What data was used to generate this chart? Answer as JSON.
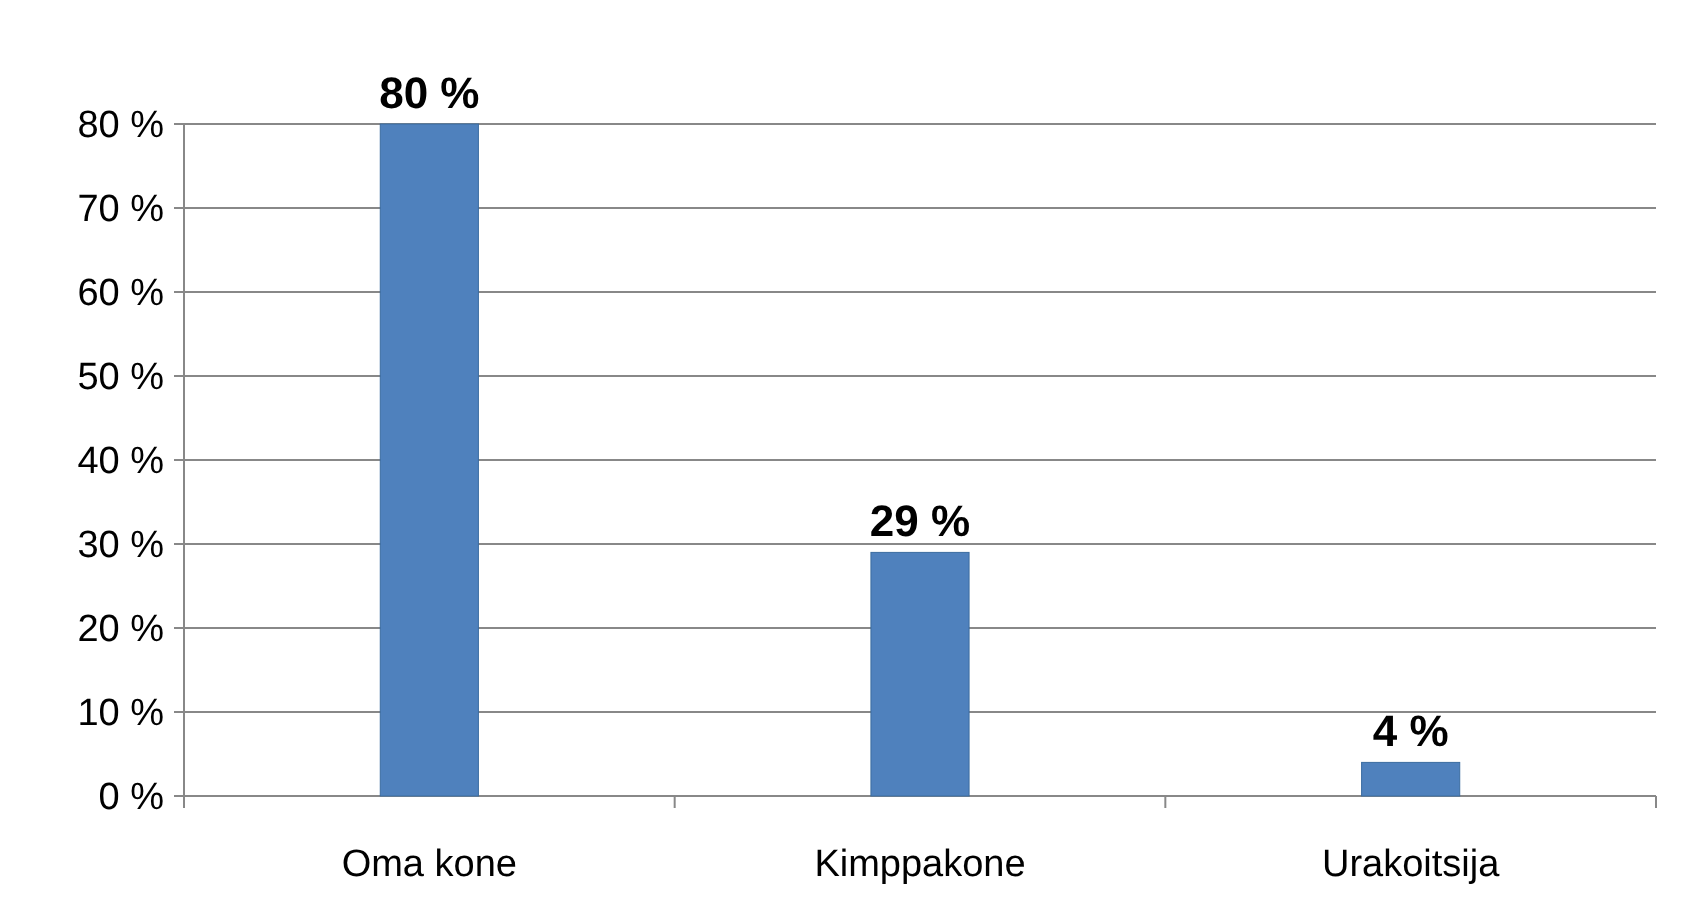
{
  "chart_data": {
    "type": "bar",
    "categories": [
      "Oma kone",
      "Kimppakone",
      "Urakoitsija"
    ],
    "values": [
      80,
      29,
      4
    ],
    "value_labels": [
      "80 %",
      "29 %",
      "4 %"
    ],
    "color": "#4f81bd",
    "ylim": [
      0,
      80
    ],
    "yticks": [
      {
        "value": 0,
        "label": "0 %"
      },
      {
        "value": 10,
        "label": "10 %"
      },
      {
        "value": 20,
        "label": "20 %"
      },
      {
        "value": 30,
        "label": "30 %"
      },
      {
        "value": 40,
        "label": "40 %"
      },
      {
        "value": 50,
        "label": "50 %"
      },
      {
        "value": 60,
        "label": "60 %"
      },
      {
        "value": 70,
        "label": "70 %"
      },
      {
        "value": 80,
        "label": "80 %"
      }
    ],
    "grid": true
  }
}
